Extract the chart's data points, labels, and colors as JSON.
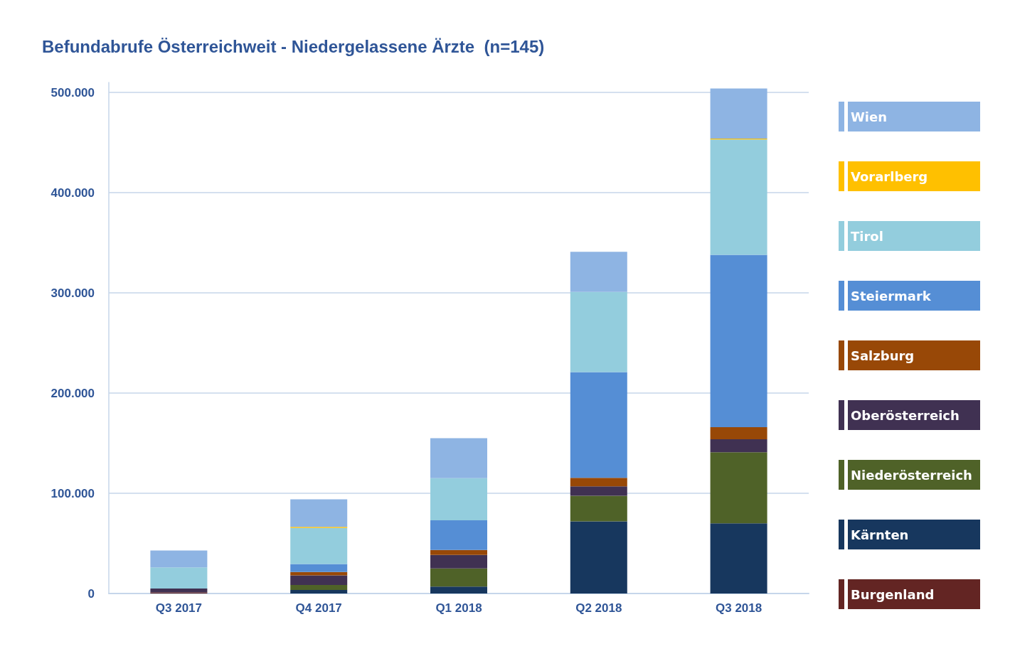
{
  "chart_data": {
    "type": "bar",
    "title": "Befundabrufe Österreichweit - Niedergelassene Ärzte  (n=145)",
    "categories": [
      "Q3 2017",
      "Q4 2017",
      "Q1 2018",
      "Q2 2018",
      "Q3 2018"
    ],
    "stacked": true,
    "grid": "y",
    "legend": "right",
    "ylim": [
      0,
      510000
    ],
    "yticks": [
      {
        "value": 0,
        "label": "0"
      },
      {
        "value": 100000,
        "label": "100.000"
      },
      {
        "value": 200000,
        "label": "200.000"
      },
      {
        "value": 300000,
        "label": "300.000"
      },
      {
        "value": 400000,
        "label": "400.000"
      },
      {
        "value": 500000,
        "label": "500.000"
      }
    ],
    "series": [
      {
        "name": "Burgenland",
        "color": "#632523",
        "values": [
          1000,
          0,
          0,
          0,
          0
        ]
      },
      {
        "name": "Kärnten",
        "color": "#17375e",
        "values": [
          0,
          3500,
          7000,
          72000,
          70000
        ]
      },
      {
        "name": "Niederösterreich",
        "color": "#4f6228",
        "values": [
          0,
          5000,
          18000,
          25500,
          71000
        ]
      },
      {
        "name": "Oberösterreich",
        "color": "#403152",
        "values": [
          4000,
          9500,
          13500,
          9500,
          13000
        ]
      },
      {
        "name": "Salzburg",
        "color": "#984807",
        "values": [
          0,
          3500,
          5000,
          8500,
          12000
        ]
      },
      {
        "name": "Steiermark",
        "color": "#558ed5",
        "values": [
          0,
          8000,
          29500,
          105500,
          172000
        ]
      },
      {
        "name": "Tirol",
        "color": "#93cddd",
        "values": [
          21000,
          36000,
          42000,
          80000,
          115000
        ]
      },
      {
        "name": "Vorarlberg",
        "color": "#ffc000",
        "values": [
          0,
          1000,
          0,
          0,
          1000
        ]
      },
      {
        "name": "Wien",
        "color": "#8eb4e3",
        "values": [
          17000,
          27500,
          40000,
          40000,
          50000
        ]
      }
    ]
  }
}
